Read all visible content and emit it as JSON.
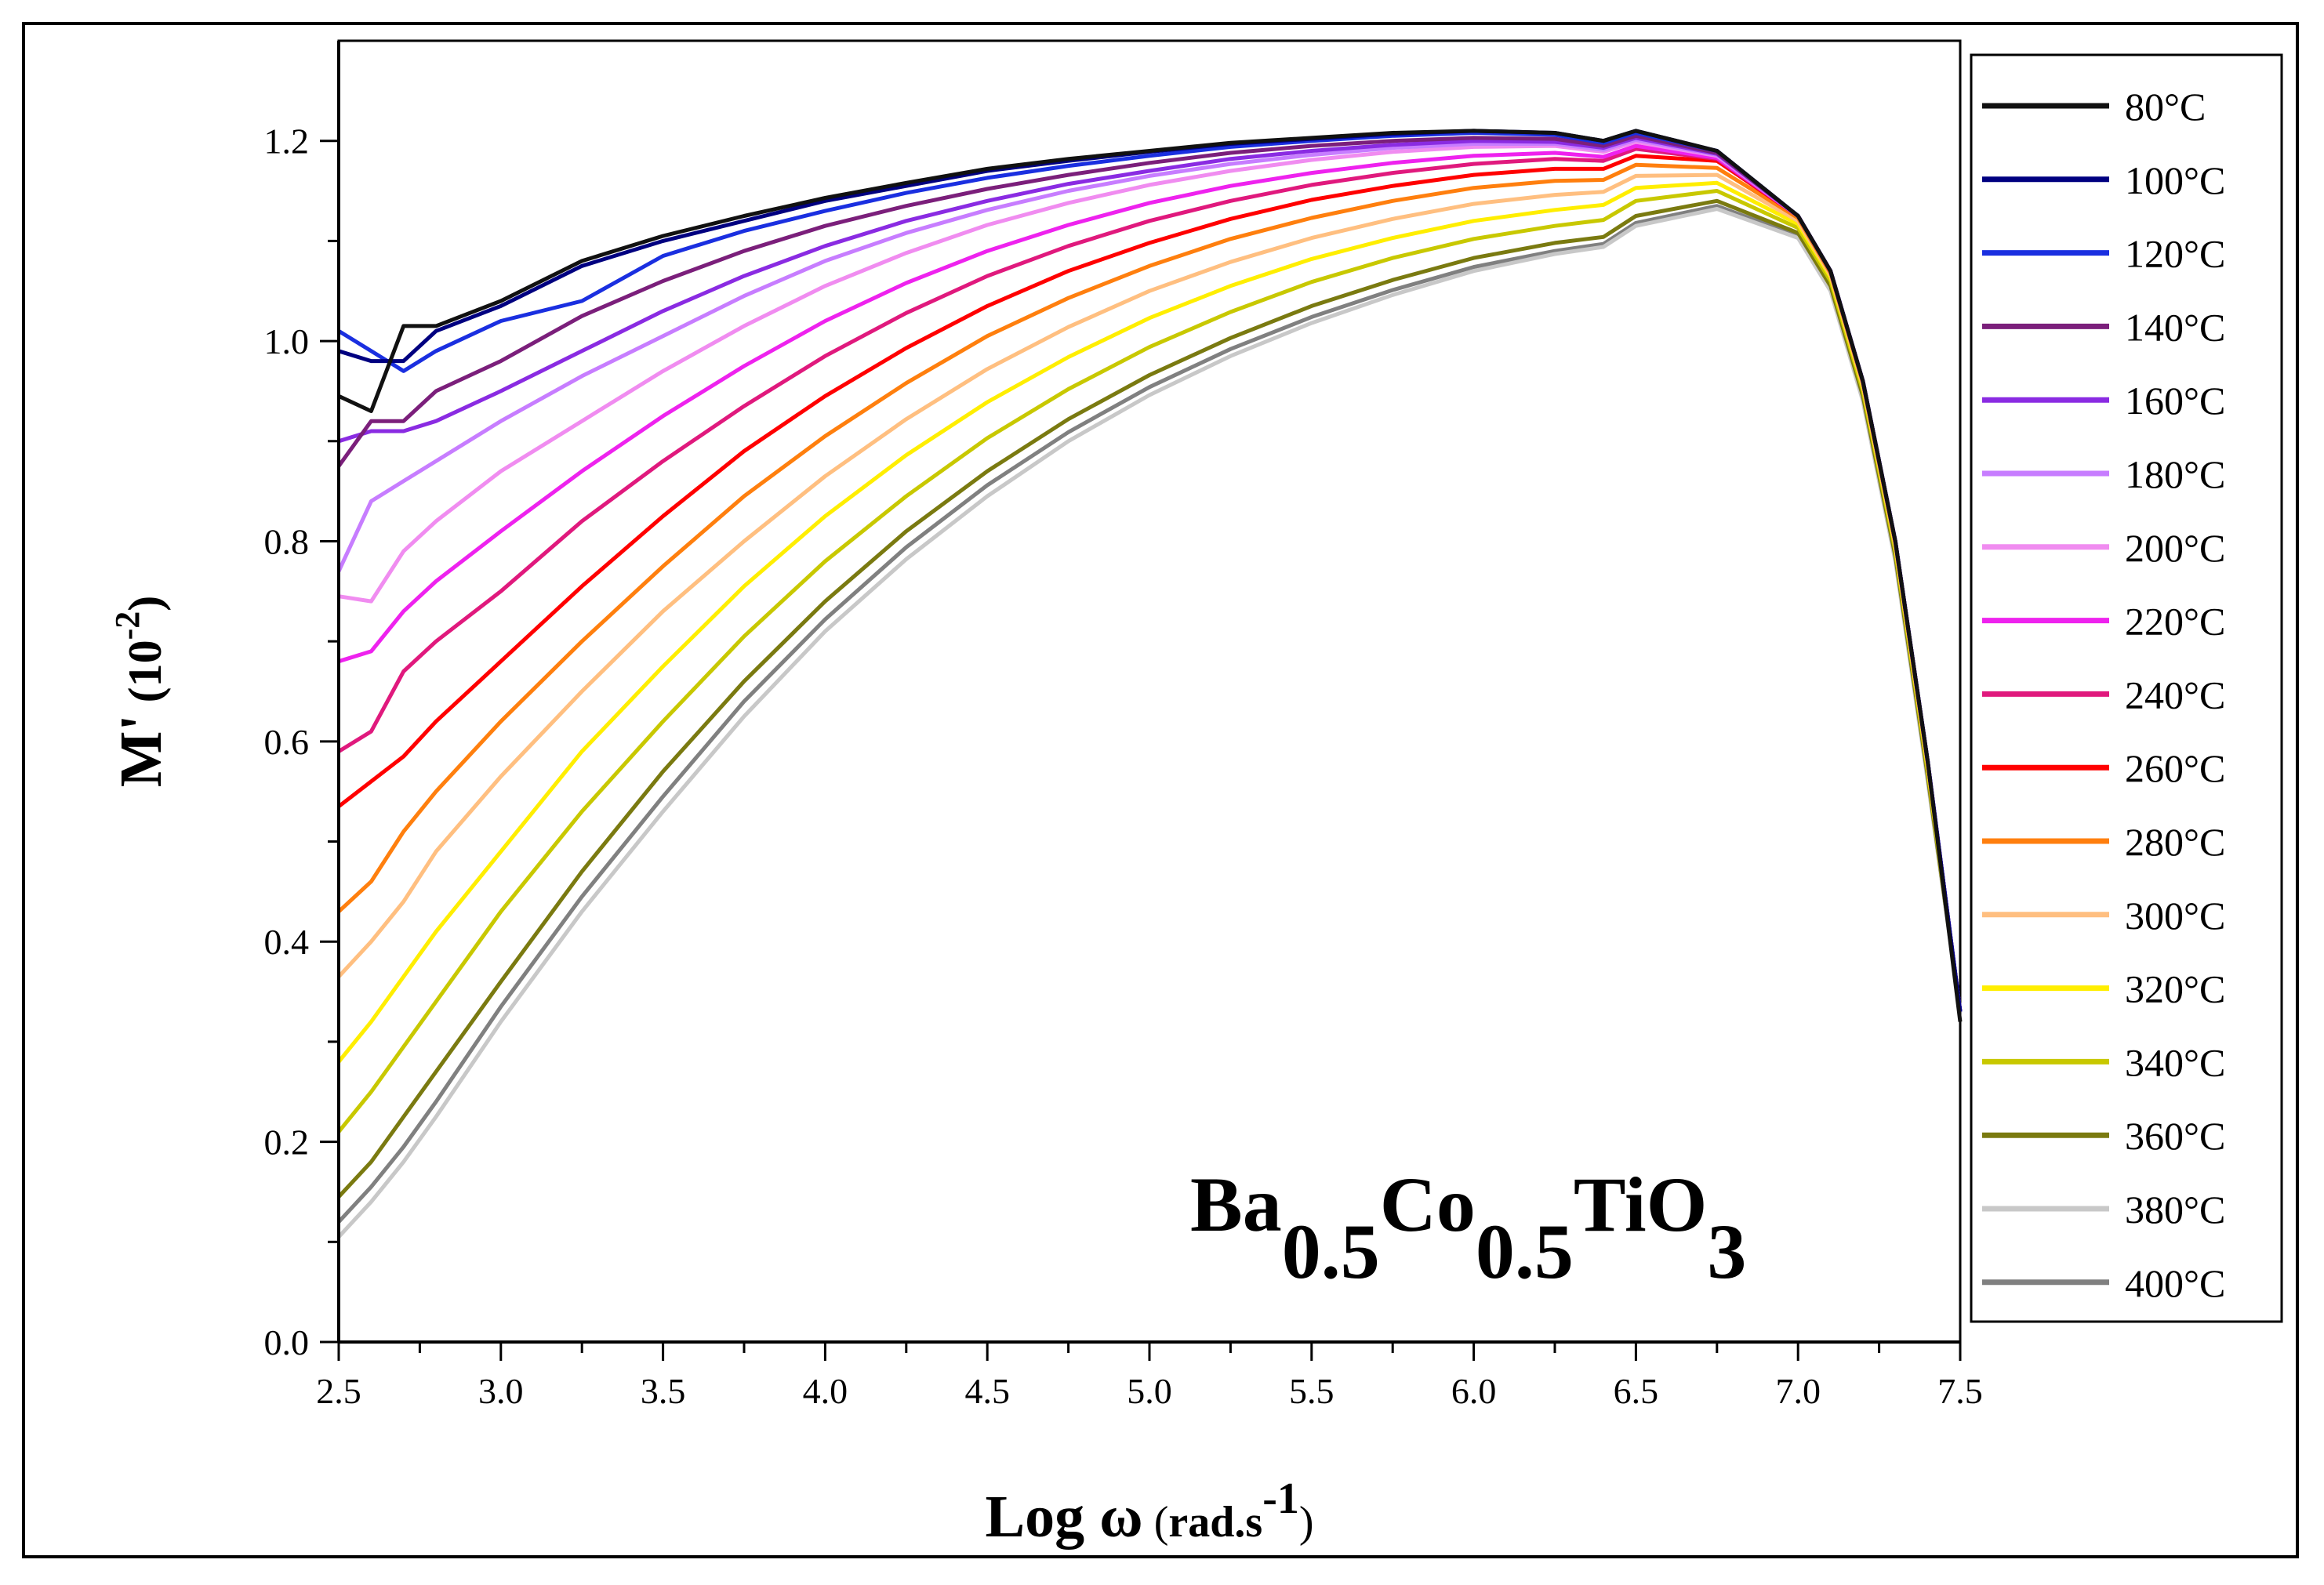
{
  "chart_data": {
    "type": "line",
    "title": "",
    "xlabel": {
      "main": "Log ω",
      "unit_open": " (",
      "unit": "rad.s",
      "unit_sup": "-1",
      "unit_close": ")"
    },
    "ylabel": {
      "main": "M'",
      "unit_open": " (10",
      "unit_sup": "-2",
      "unit_close": ")"
    },
    "xlim": [
      2.5,
      7.5
    ],
    "ylim": [
      0.0,
      1.3
    ],
    "xticks": [
      2.5,
      3.0,
      3.5,
      4.0,
      4.5,
      5.0,
      5.5,
      6.0,
      6.5,
      7.0,
      7.5
    ],
    "xtick_labels": [
      "2.5",
      "3.0",
      "3.5",
      "4.0",
      "4.5",
      "5.0",
      "5.5",
      "6.0",
      "6.5",
      "7.0",
      "7.5"
    ],
    "yticks": [
      0.0,
      0.2,
      0.4,
      0.6,
      0.8,
      1.0,
      1.2
    ],
    "ytick_labels": [
      "0.0",
      "0.2",
      "0.4",
      "0.6",
      "0.8",
      "1.0",
      "1.2"
    ],
    "grid": false,
    "legend_position": "right-outside",
    "annotation": {
      "parts": [
        "Ba",
        "0.5",
        "Co",
        "0.5",
        "TiO",
        "3"
      ],
      "position": "bottom-right"
    },
    "x": [
      2.5,
      2.6,
      2.7,
      2.8,
      3.0,
      3.25,
      3.5,
      3.75,
      4.0,
      4.25,
      4.5,
      4.75,
      5.0,
      5.25,
      5.5,
      5.75,
      6.0,
      6.25,
      6.4,
      6.5,
      6.75,
      7.0,
      7.1,
      7.2,
      7.3,
      7.4,
      7.5
    ],
    "series": [
      {
        "name": "80°C",
        "color": "#111111",
        "values": [
          0.945,
          0.93,
          1.015,
          1.015,
          1.04,
          1.08,
          1.105,
          1.125,
          1.143,
          1.158,
          1.172,
          1.182,
          1.19,
          1.198,
          1.203,
          1.208,
          1.21,
          1.208,
          1.2,
          1.21,
          1.19,
          1.125,
          1.07,
          0.96,
          0.8,
          0.58,
          0.32
        ]
      },
      {
        "name": "100°C",
        "color": "#000080",
        "values": [
          0.99,
          0.98,
          0.98,
          1.01,
          1.035,
          1.075,
          1.1,
          1.12,
          1.14,
          1.155,
          1.17,
          1.18,
          1.189,
          1.197,
          1.202,
          1.207,
          1.21,
          1.208,
          1.2,
          1.21,
          1.19,
          1.125,
          1.07,
          0.96,
          0.8,
          0.58,
          0.33
        ]
      },
      {
        "name": "120°C",
        "color": "#1a2fe0",
        "values": [
          1.01,
          0.99,
          0.97,
          0.99,
          1.02,
          1.04,
          1.085,
          1.11,
          1.13,
          1.148,
          1.163,
          1.175,
          1.185,
          1.194,
          1.2,
          1.205,
          1.208,
          1.206,
          1.198,
          1.208,
          1.19,
          1.125,
          1.07,
          0.96,
          0.8,
          0.58,
          0.33
        ]
      },
      {
        "name": "140°C",
        "color": "#7b1f7b",
        "values": [
          0.875,
          0.92,
          0.92,
          0.95,
          0.98,
          1.025,
          1.06,
          1.09,
          1.115,
          1.135,
          1.152,
          1.166,
          1.178,
          1.188,
          1.195,
          1.2,
          1.203,
          1.202,
          1.195,
          1.205,
          1.188,
          1.125,
          1.07,
          0.96,
          0.8,
          0.58,
          0.33
        ]
      },
      {
        "name": "160°C",
        "color": "#8a2be2",
        "values": [
          0.9,
          0.91,
          0.91,
          0.92,
          0.95,
          0.99,
          1.03,
          1.065,
          1.095,
          1.12,
          1.14,
          1.157,
          1.17,
          1.182,
          1.19,
          1.196,
          1.2,
          1.199,
          1.193,
          1.203,
          1.187,
          1.125,
          1.07,
          0.96,
          0.8,
          0.58,
          0.33
        ]
      },
      {
        "name": "180°C",
        "color": "#c77dff",
        "values": [
          0.77,
          0.84,
          0.86,
          0.88,
          0.92,
          0.965,
          1.005,
          1.045,
          1.08,
          1.108,
          1.131,
          1.15,
          1.165,
          1.177,
          1.186,
          1.193,
          1.197,
          1.197,
          1.191,
          1.201,
          1.186,
          1.125,
          1.07,
          0.96,
          0.8,
          0.58,
          0.33
        ]
      },
      {
        "name": "200°C",
        "color": "#f08cf0",
        "values": [
          0.745,
          0.74,
          0.79,
          0.82,
          0.87,
          0.92,
          0.97,
          1.015,
          1.055,
          1.088,
          1.116,
          1.138,
          1.156,
          1.17,
          1.181,
          1.189,
          1.194,
          1.195,
          1.189,
          1.199,
          1.185,
          1.125,
          1.07,
          0.96,
          0.8,
          0.58,
          0.33
        ]
      },
      {
        "name": "220°C",
        "color": "#ee22ee",
        "values": [
          0.68,
          0.69,
          0.73,
          0.76,
          0.81,
          0.87,
          0.925,
          0.975,
          1.02,
          1.058,
          1.09,
          1.116,
          1.138,
          1.155,
          1.168,
          1.178,
          1.185,
          1.188,
          1.184,
          1.195,
          1.183,
          1.125,
          1.07,
          0.96,
          0.8,
          0.58,
          0.33
        ]
      },
      {
        "name": "240°C",
        "color": "#e0197d",
        "values": [
          0.59,
          0.61,
          0.67,
          0.7,
          0.75,
          0.82,
          0.88,
          0.935,
          0.985,
          1.028,
          1.065,
          1.095,
          1.12,
          1.14,
          1.156,
          1.168,
          1.177,
          1.182,
          1.18,
          1.192,
          1.182,
          1.125,
          1.07,
          0.96,
          0.8,
          0.58,
          0.33
        ]
      },
      {
        "name": "260°C",
        "color": "#ff0000",
        "values": [
          0.535,
          0.56,
          0.585,
          0.62,
          0.68,
          0.755,
          0.825,
          0.89,
          0.945,
          0.993,
          1.035,
          1.07,
          1.098,
          1.122,
          1.141,
          1.155,
          1.166,
          1.172,
          1.172,
          1.185,
          1.18,
          1.125,
          1.07,
          0.96,
          0.8,
          0.58,
          0.33
        ]
      },
      {
        "name": "280°C",
        "color": "#ff7f0e",
        "values": [
          0.43,
          0.46,
          0.51,
          0.55,
          0.62,
          0.7,
          0.775,
          0.845,
          0.905,
          0.958,
          1.005,
          1.043,
          1.075,
          1.102,
          1.123,
          1.14,
          1.153,
          1.16,
          1.161,
          1.176,
          1.173,
          1.123,
          1.068,
          0.958,
          0.798,
          0.578,
          0.33
        ]
      },
      {
        "name": "300°C",
        "color": "#ffbf80",
        "values": [
          0.365,
          0.4,
          0.44,
          0.49,
          0.565,
          0.65,
          0.73,
          0.8,
          0.865,
          0.922,
          0.972,
          1.014,
          1.05,
          1.079,
          1.103,
          1.122,
          1.137,
          1.146,
          1.149,
          1.165,
          1.166,
          1.12,
          1.066,
          0.956,
          0.796,
          0.576,
          0.33
        ]
      },
      {
        "name": "320°C",
        "color": "#ffee00",
        "values": [
          0.28,
          0.32,
          0.365,
          0.41,
          0.49,
          0.59,
          0.675,
          0.755,
          0.825,
          0.886,
          0.939,
          0.984,
          1.023,
          1.055,
          1.082,
          1.103,
          1.12,
          1.131,
          1.136,
          1.153,
          1.158,
          1.117,
          1.064,
          0.954,
          0.794,
          0.574,
          0.33
        ]
      },
      {
        "name": "340°C",
        "color": "#c8c800",
        "values": [
          0.21,
          0.25,
          0.295,
          0.34,
          0.43,
          0.53,
          0.62,
          0.705,
          0.78,
          0.845,
          0.903,
          0.952,
          0.994,
          1.029,
          1.059,
          1.083,
          1.102,
          1.115,
          1.121,
          1.14,
          1.15,
          1.113,
          1.06,
          0.95,
          0.79,
          0.57,
          0.33
        ]
      },
      {
        "name": "360°C",
        "color": "#7a7a10",
        "values": [
          0.145,
          0.18,
          0.225,
          0.27,
          0.36,
          0.47,
          0.57,
          0.66,
          0.74,
          0.81,
          0.87,
          0.922,
          0.966,
          1.003,
          1.035,
          1.061,
          1.083,
          1.098,
          1.104,
          1.125,
          1.14,
          1.108,
          1.055,
          0.945,
          0.785,
          0.565,
          0.33
        ]
      },
      {
        "name": "380°C",
        "color": "#c8c8c8",
        "values": [
          0.105,
          0.14,
          0.18,
          0.225,
          0.32,
          0.43,
          0.53,
          0.625,
          0.71,
          0.782,
          0.845,
          0.9,
          0.946,
          0.985,
          1.018,
          1.046,
          1.07,
          1.087,
          1.094,
          1.115,
          1.132,
          1.103,
          1.05,
          0.94,
          0.78,
          0.56,
          0.33
        ]
      },
      {
        "name": "400°C",
        "color": "#808080",
        "values": [
          0.12,
          0.155,
          0.195,
          0.24,
          0.335,
          0.445,
          0.545,
          0.64,
          0.722,
          0.794,
          0.856,
          0.909,
          0.954,
          0.992,
          1.024,
          1.051,
          1.074,
          1.09,
          1.097,
          1.118,
          1.135,
          1.105,
          1.052,
          0.942,
          0.782,
          0.562,
          0.33
        ]
      }
    ]
  }
}
